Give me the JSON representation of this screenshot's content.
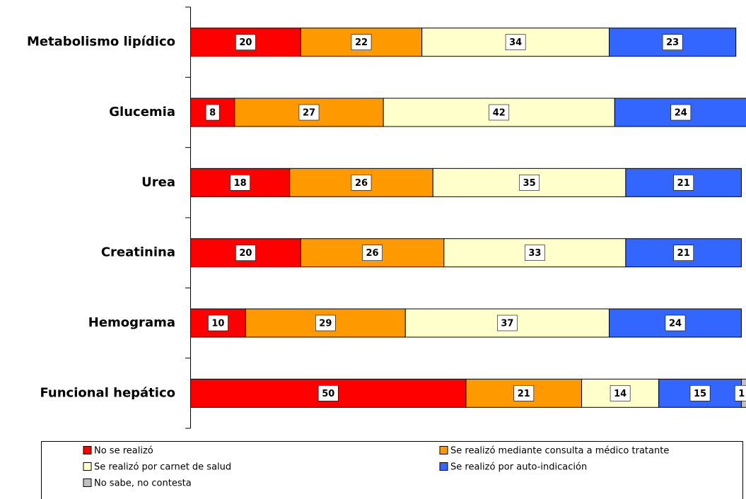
{
  "chart_data": {
    "type": "stacked_bar_horizontal",
    "categories": [
      "Metabolismo lipídico",
      "Glucemia",
      "Urea",
      "Creatinina",
      "Hemograma",
      "Funcional hepático"
    ],
    "series": [
      {
        "name": "No se realizó",
        "color": "#ff0000",
        "values": [
          20,
          8,
          18,
          20,
          10,
          50
        ]
      },
      {
        "name": "Se realizó mediante consulta a médico tratante",
        "color": "#ff9900",
        "values": [
          22,
          27,
          26,
          26,
          29,
          21
        ]
      },
      {
        "name": "Se realizó por carnet de salud",
        "color": "#ffffcc",
        "values": [
          34,
          42,
          35,
          33,
          37,
          14
        ]
      },
      {
        "name": "Se realizó por auto-indicación",
        "color": "#3366ff",
        "values": [
          23,
          24,
          21,
          21,
          24,
          15
        ]
      },
      {
        "name": "No sabe, no contesta",
        "color": "#c0c0c0",
        "values": [
          null,
          null,
          null,
          null,
          null,
          1
        ]
      }
    ],
    "xlim": [
      0,
      100
    ],
    "legend": "bottom"
  }
}
